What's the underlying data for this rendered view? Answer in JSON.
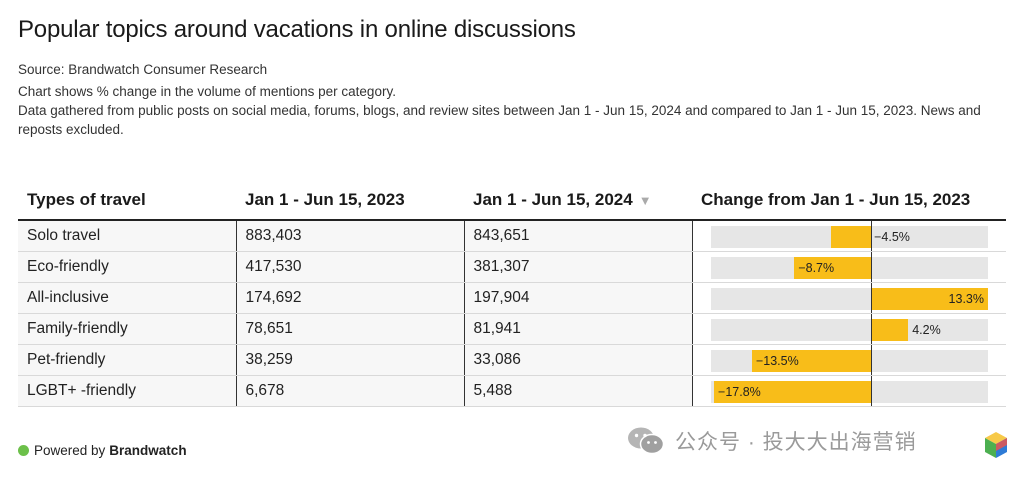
{
  "title": "Popular topics around vacations in online discussions",
  "source": "Source: Brandwatch Consumer Research",
  "note1": "Chart shows % change in the volume of mentions per category.",
  "note2": "Data gathered from public posts on social media, forums, blogs, and review sites between Jan 1 - Jun 15, 2024 and compared to Jan 1 - Jun 15, 2023. News and reposts excluded.",
  "columns": {
    "type": "Types of travel",
    "y2023": "Jan 1 - Jun 15, 2023",
    "y2024": "Jan 1 - Jun 15, 2024",
    "change": "Change from Jan 1 - Jun 15, 2023"
  },
  "sort_indicator": "▼",
  "colors": {
    "bar": "#f8bd19",
    "track": "#e6e6e6",
    "dot": "#6cc04a"
  },
  "chart_data": {
    "type": "table",
    "rows": [
      {
        "type": "Solo travel",
        "y2023": "883,403",
        "y2024": "843,651",
        "change": -4.5,
        "change_label": "−4.5%"
      },
      {
        "type": "Eco-friendly",
        "y2023": "417,530",
        "y2024": "381,307",
        "change": -8.7,
        "change_label": "−8.7%"
      },
      {
        "type": "All-inclusive",
        "y2023": "174,692",
        "y2024": "197,904",
        "change": 13.3,
        "change_label": "13.3%"
      },
      {
        "type": "Family-friendly",
        "y2023": "78,651",
        "y2024": "81,941",
        "change": 4.2,
        "change_label": "4.2%"
      },
      {
        "type": "Pet-friendly",
        "y2023": "38,259",
        "y2024": "33,086",
        "change": -13.5,
        "change_label": "−13.5%"
      },
      {
        "type": "LGBT+ -friendly",
        "y2023": "6,678",
        "y2024": "5,488",
        "change": -17.8,
        "change_label": "−17.8%"
      }
    ],
    "change_range": [
      -17.8,
      13.3
    ]
  },
  "footer": {
    "prefix": "Powered by",
    "brand": "Brandwatch"
  },
  "watermark": {
    "text": "公众号 · 投大大出海营销",
    "icon": "wechat-icon"
  }
}
